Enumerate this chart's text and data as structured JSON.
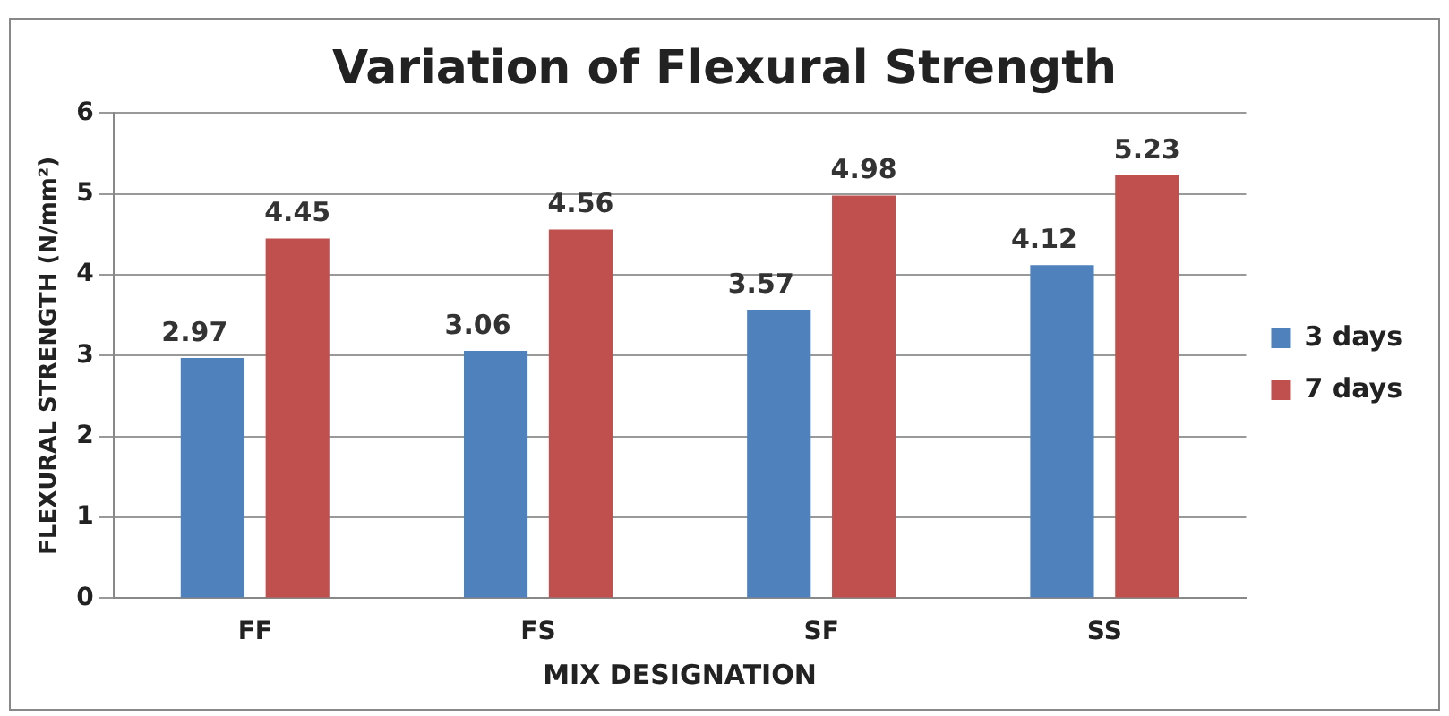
{
  "chart_data": {
    "type": "bar",
    "title": "Variation of Flexural Strength",
    "xlabel": "MIX DESIGNATION",
    "ylabel": "FLEXURAL STRENGTH (N/mm²)",
    "categories": [
      "FF",
      "FS",
      "SF",
      "SS"
    ],
    "series": [
      {
        "name": "3 days",
        "color": "#4f81bd",
        "values": [
          2.97,
          3.06,
          3.57,
          4.12
        ]
      },
      {
        "name": "7 days",
        "color": "#c0504d",
        "values": [
          4.45,
          4.56,
          4.98,
          5.23
        ]
      }
    ],
    "ylim": [
      0,
      6
    ],
    "yticks": [
      0,
      1,
      2,
      3,
      4,
      5,
      6
    ],
    "grid": "y",
    "legend": "right",
    "data_labels": true
  }
}
